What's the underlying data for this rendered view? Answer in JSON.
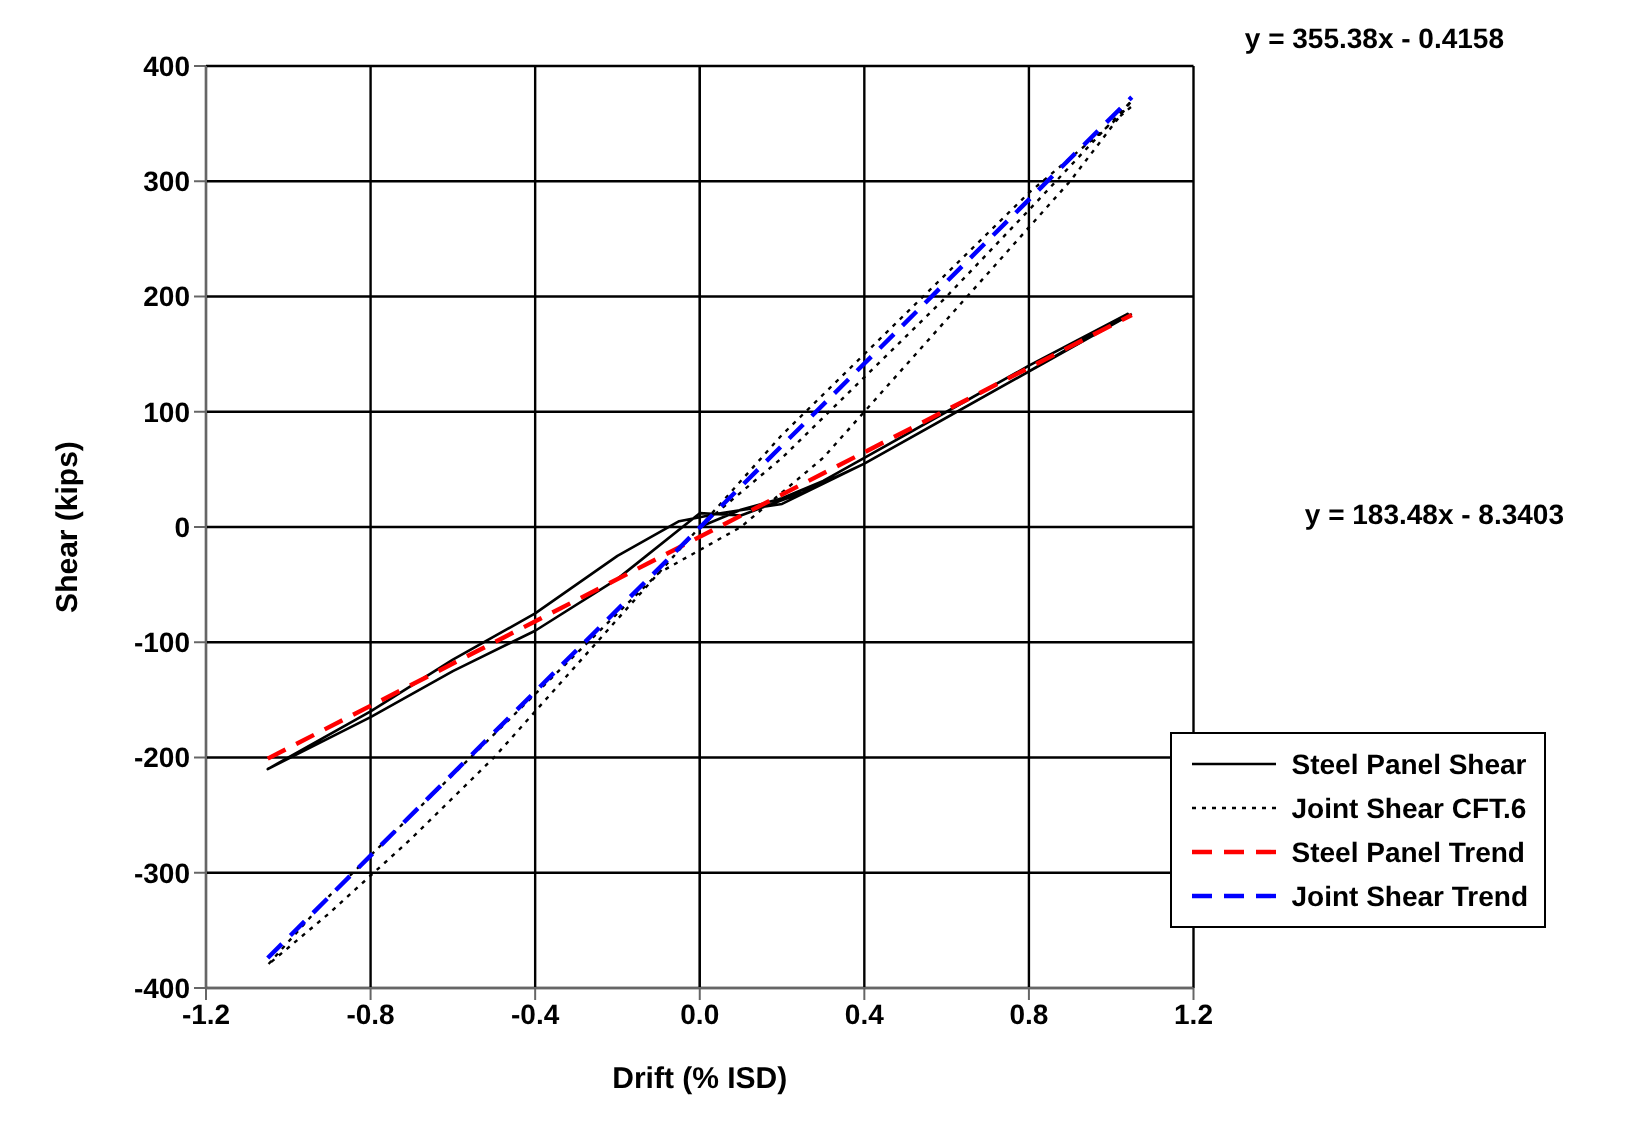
{
  "chart_data": {
    "type": "line",
    "xlabel": "Drift (% ISD)",
    "ylabel": "Shear (kips)",
    "xlim": [
      -1.2,
      1.2
    ],
    "xticks": [
      -1.2,
      -0.8,
      -0.4,
      {
        "value": 0,
        "label": "0.0"
      },
      0.4,
      0.8,
      1.2
    ],
    "ylim": [
      -400,
      400
    ],
    "yticks": [
      -400,
      -300,
      -200,
      -100,
      0,
      100,
      200,
      300,
      400
    ],
    "grid": true,
    "legend": "bottom right",
    "marker": "none",
    "annotations": [
      "y = 355.38x - 0.4158",
      "y = 183.48x - 8.3403"
    ],
    "series": [
      {
        "name": "Steel Panel Shear",
        "color": "#000000",
        "line_style": "solid",
        "x": [
          0,
          0.1,
          0.2,
          0.3,
          0.4,
          0.6,
          0.8,
          1.04,
          0.8,
          0.6,
          0.4,
          0.2,
          0.05,
          -0.05,
          -0.2,
          -0.4,
          -0.6,
          -0.8,
          -1.05,
          -0.8,
          -0.6,
          -0.4,
          -0.2,
          0,
          0.1,
          0.25,
          0.4,
          0.7,
          1.05
        ],
        "values": [
          0,
          15,
          25,
          40,
          60,
          100,
          140,
          185,
          135,
          95,
          55,
          20,
          12,
          5,
          -25,
          -75,
          -115,
          -160,
          -210,
          -165,
          -125,
          -90,
          -45,
          12,
          10,
          30,
          55,
          115,
          185
        ]
      },
      {
        "name": "Joint Shear CFT.6",
        "color": "#000000",
        "line_style": "dotted",
        "x": [
          0,
          0.2,
          0.4,
          0.6,
          0.8,
          1.05,
          0.9,
          0.7,
          0.5,
          0.3,
          0.1,
          -0.1,
          -0.3,
          -0.5,
          -0.7,
          -0.9,
          -1.05,
          -0.9,
          -0.7,
          -0.5,
          -0.3,
          -0.1,
          0,
          0.2,
          0.4,
          0.6,
          0.8,
          1.05
        ],
        "values": [
          0,
          60,
          130,
          200,
          275,
          370,
          300,
          220,
          140,
          60,
          0,
          -40,
          -110,
          -180,
          -250,
          -320,
          -380,
          -335,
          -270,
          -200,
          -120,
          -40,
          0,
          80,
          150,
          220,
          290,
          365
        ]
      },
      {
        "name": "Steel Panel Trend",
        "color": "#ff0000",
        "line_style": "dashed",
        "x": [
          -1.05,
          1.05
        ],
        "values": [
          -201,
          184
        ]
      },
      {
        "name": "Joint Shear Trend",
        "color": "#0000ff",
        "line_style": "dashed",
        "x": [
          -1.05,
          1.05
        ],
        "values": [
          -374,
          373
        ]
      }
    ]
  }
}
